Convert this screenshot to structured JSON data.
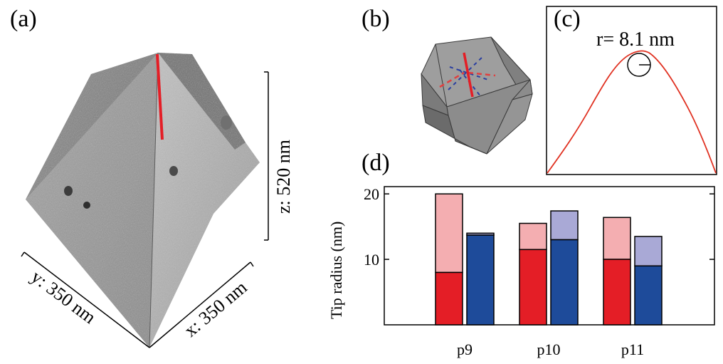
{
  "panels": {
    "a": "(a)",
    "b": "(b)",
    "c": "(c)",
    "d": "(d)"
  },
  "panel_a": {
    "z_label": "z: 520 nm",
    "y_label": "y: 350 nm",
    "x_label": "x: 350 nm"
  },
  "panel_c": {
    "radius_label": "r= 8.1 nm"
  },
  "colors": {
    "red": "#e41e26",
    "red_light": "#f4aeb1",
    "blue": "#1e4b9a",
    "blue_light": "#a9a9d6",
    "profile": "#e03020"
  },
  "chart_data": {
    "type": "bar",
    "title": "",
    "xlabel": "",
    "ylabel": "Tip radius (nm)",
    "ylim": [
      0,
      21
    ],
    "yticks": [
      10,
      20
    ],
    "categories": [
      "p9",
      "p10",
      "p11"
    ],
    "series": [
      {
        "name": "red lower",
        "values": [
          8,
          11.5,
          10
        ]
      },
      {
        "name": "red upper",
        "values": [
          20,
          15.5,
          16.4
        ]
      },
      {
        "name": "blue lower",
        "values": [
          13.7,
          13,
          9
        ]
      },
      {
        "name": "blue upper",
        "values": [
          14,
          17.4,
          13.5
        ]
      }
    ]
  }
}
